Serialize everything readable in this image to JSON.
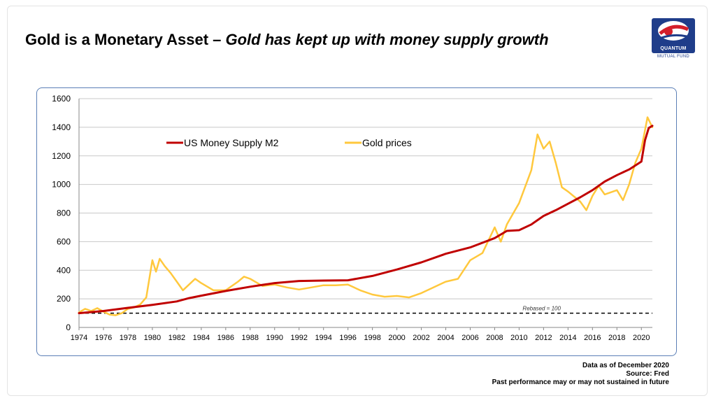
{
  "title": {
    "main": "Gold is a Monetary Asset – ",
    "italic": "Gold has kept up with money supply growth"
  },
  "logo": {
    "name": "QUANTUM",
    "subtitle": "MUTUAL FUND"
  },
  "footnotes": {
    "date": "Data as of December 2020",
    "source": "Source: Fred",
    "disclaimer": "Past performance may or may not sustained in future"
  },
  "colors": {
    "m2": "#c00000",
    "gold": "#ffc83d",
    "baseline": "#000000",
    "grid": "#c8c8c8"
  },
  "chart_data": {
    "type": "line",
    "title": "",
    "xlabel": "",
    "ylabel": "",
    "xlim": [
      1974,
      2020.9
    ],
    "ylim": [
      0,
      1600
    ],
    "x_ticks": [
      "1974",
      "1976",
      "1978",
      "1980",
      "1982",
      "1984",
      "1986",
      "1988",
      "1990",
      "1992",
      "1994",
      "1996",
      "1998",
      "2000",
      "2002",
      "2004",
      "2006",
      "2008",
      "2010",
      "2012",
      "2014",
      "2016",
      "2018",
      "2020"
    ],
    "y_ticks": [
      "0",
      "200",
      "400",
      "600",
      "800",
      "1000",
      "1200",
      "1400",
      "1600"
    ],
    "grid": "horizontal",
    "legend_position": "top-left",
    "annotation": {
      "text": "Rebased = 100",
      "x": 2010,
      "y": 100
    },
    "reference_line": {
      "y": 100,
      "style": "dashed"
    },
    "series": [
      {
        "name": "US Money Supply M2",
        "color": "#c00000",
        "points": [
          [
            1974,
            100
          ],
          [
            1976,
            115
          ],
          [
            1978,
            137
          ],
          [
            1980,
            158
          ],
          [
            1982,
            182
          ],
          [
            1983,
            205
          ],
          [
            1984,
            222
          ],
          [
            1986,
            255
          ],
          [
            1988,
            285
          ],
          [
            1990,
            310
          ],
          [
            1992,
            325
          ],
          [
            1994,
            328
          ],
          [
            1996,
            330
          ],
          [
            1998,
            360
          ],
          [
            2000,
            405
          ],
          [
            2002,
            455
          ],
          [
            2004,
            515
          ],
          [
            2006,
            560
          ],
          [
            2008,
            625
          ],
          [
            2009,
            675
          ],
          [
            2010,
            680
          ],
          [
            2011,
            720
          ],
          [
            2012,
            780
          ],
          [
            2013,
            820
          ],
          [
            2014,
            865
          ],
          [
            2015,
            910
          ],
          [
            2016,
            960
          ],
          [
            2017,
            1020
          ],
          [
            2018,
            1065
          ],
          [
            2019,
            1105
          ],
          [
            2020,
            1160
          ],
          [
            2020.3,
            1310
          ],
          [
            2020.6,
            1395
          ],
          [
            2020.9,
            1410
          ]
        ]
      },
      {
        "name": "Gold prices",
        "color": "#ffc83d",
        "points": [
          [
            1974,
            105
          ],
          [
            1974.5,
            130
          ],
          [
            1975,
            115
          ],
          [
            1975.5,
            135
          ],
          [
            1976,
            110
          ],
          [
            1976.5,
            90
          ],
          [
            1977,
            85
          ],
          [
            1977.5,
            100
          ],
          [
            1978,
            130
          ],
          [
            1978.5,
            140
          ],
          [
            1979,
            160
          ],
          [
            1979.5,
            210
          ],
          [
            1980,
            470
          ],
          [
            1980.3,
            390
          ],
          [
            1980.6,
            480
          ],
          [
            1981,
            430
          ],
          [
            1981.5,
            380
          ],
          [
            1982,
            320
          ],
          [
            1982.5,
            260
          ],
          [
            1983,
            300
          ],
          [
            1983.5,
            340
          ],
          [
            1984,
            310
          ],
          [
            1985,
            260
          ],
          [
            1986,
            260
          ],
          [
            1987,
            320
          ],
          [
            1987.5,
            355
          ],
          [
            1988,
            340
          ],
          [
            1989,
            290
          ],
          [
            1990,
            300
          ],
          [
            1991,
            280
          ],
          [
            1992,
            265
          ],
          [
            1993,
            280
          ],
          [
            1994,
            295
          ],
          [
            1995,
            295
          ],
          [
            1996,
            300
          ],
          [
            1997,
            260
          ],
          [
            1998,
            230
          ],
          [
            1999,
            215
          ],
          [
            2000,
            220
          ],
          [
            2001,
            210
          ],
          [
            2002,
            240
          ],
          [
            2003,
            280
          ],
          [
            2004,
            320
          ],
          [
            2005,
            340
          ],
          [
            2006,
            470
          ],
          [
            2007,
            520
          ],
          [
            2008,
            700
          ],
          [
            2008.5,
            600
          ],
          [
            2009,
            720
          ],
          [
            2010,
            870
          ],
          [
            2011,
            1100
          ],
          [
            2011.5,
            1350
          ],
          [
            2012,
            1250
          ],
          [
            2012.5,
            1300
          ],
          [
            2013,
            1150
          ],
          [
            2013.5,
            980
          ],
          [
            2014,
            950
          ],
          [
            2015,
            880
          ],
          [
            2015.5,
            820
          ],
          [
            2016,
            920
          ],
          [
            2016.5,
            990
          ],
          [
            2017,
            930
          ],
          [
            2018,
            960
          ],
          [
            2018.5,
            890
          ],
          [
            2019,
            1000
          ],
          [
            2019.5,
            1150
          ],
          [
            2020,
            1250
          ],
          [
            2020.3,
            1380
          ],
          [
            2020.5,
            1470
          ],
          [
            2020.9,
            1400
          ]
        ]
      }
    ]
  }
}
